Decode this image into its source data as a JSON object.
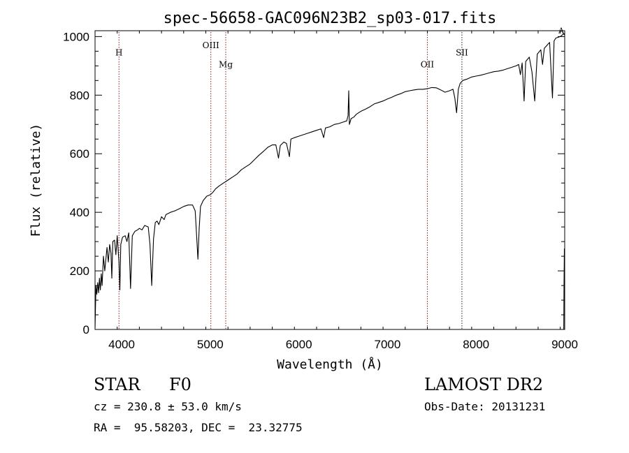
{
  "chart_data": {
    "type": "line",
    "title": "spec-56658-GAC096N23B2_sp03-017.fits",
    "xlabel": "Wavelength (Å)",
    "ylabel": "Flux (relative)",
    "xlim": [
      3700,
      9000
    ],
    "ylim": [
      0,
      1020
    ],
    "x_ticks": [
      4000,
      5000,
      6000,
      7000,
      8000,
      9000
    ],
    "y_ticks": [
      0,
      200,
      400,
      600,
      800,
      1000
    ],
    "grid": false,
    "series": [
      {
        "color": "#000000",
        "points": [
          [
            3700,
            5
          ],
          [
            3710,
            150
          ],
          [
            3720,
            120
          ],
          [
            3730,
            160
          ],
          [
            3740,
            125
          ],
          [
            3750,
            175
          ],
          [
            3760,
            135
          ],
          [
            3770,
            190
          ],
          [
            3780,
            150
          ],
          [
            3795,
            250
          ],
          [
            3810,
            200
          ],
          [
            3835,
            280
          ],
          [
            3850,
            230
          ],
          [
            3865,
            290
          ],
          [
            3880,
            260
          ],
          [
            3889,
            175
          ],
          [
            3900,
            300
          ],
          [
            3920,
            305
          ],
          [
            3935,
            255
          ],
          [
            3950,
            320
          ],
          [
            3970,
            230
          ],
          [
            3980,
            135
          ],
          [
            3990,
            290
          ],
          [
            4010,
            315
          ],
          [
            4040,
            320
          ],
          [
            4060,
            300
          ],
          [
            4080,
            330
          ],
          [
            4101,
            140
          ],
          [
            4120,
            320
          ],
          [
            4150,
            335
          ],
          [
            4180,
            340
          ],
          [
            4200,
            345
          ],
          [
            4230,
            340
          ],
          [
            4260,
            355
          ],
          [
            4300,
            350
          ],
          [
            4320,
            290
          ],
          [
            4340,
            150
          ],
          [
            4360,
            310
          ],
          [
            4380,
            365
          ],
          [
            4400,
            370
          ],
          [
            4420,
            358
          ],
          [
            4450,
            385
          ],
          [
            4480,
            375
          ],
          [
            4500,
            392
          ],
          [
            4550,
            400
          ],
          [
            4600,
            405
          ],
          [
            4650,
            412
          ],
          [
            4700,
            420
          ],
          [
            4750,
            425
          ],
          [
            4800,
            425
          ],
          [
            4830,
            405
          ],
          [
            4850,
            300
          ],
          [
            4861,
            240
          ],
          [
            4875,
            345
          ],
          [
            4890,
            420
          ],
          [
            4920,
            440
          ],
          [
            4960,
            455
          ],
          [
            5000,
            460
          ],
          [
            5030,
            468
          ],
          [
            5060,
            480
          ],
          [
            5100,
            490
          ],
          [
            5150,
            500
          ],
          [
            5200,
            510
          ],
          [
            5250,
            520
          ],
          [
            5300,
            530
          ],
          [
            5350,
            545
          ],
          [
            5400,
            555
          ],
          [
            5450,
            565
          ],
          [
            5500,
            580
          ],
          [
            5550,
            595
          ],
          [
            5600,
            608
          ],
          [
            5650,
            622
          ],
          [
            5700,
            630
          ],
          [
            5740,
            630
          ],
          [
            5770,
            585
          ],
          [
            5790,
            628
          ],
          [
            5830,
            640
          ],
          [
            5860,
            635
          ],
          [
            5893,
            590
          ],
          [
            5910,
            650
          ],
          [
            5950,
            655
          ],
          [
            6000,
            660
          ],
          [
            6050,
            665
          ],
          [
            6100,
            670
          ],
          [
            6150,
            675
          ],
          [
            6200,
            680
          ],
          [
            6250,
            685
          ],
          [
            6280,
            655
          ],
          [
            6300,
            688
          ],
          [
            6350,
            692
          ],
          [
            6400,
            700
          ],
          [
            6450,
            703
          ],
          [
            6500,
            708
          ],
          [
            6540,
            712
          ],
          [
            6555,
            730
          ],
          [
            6563,
            815
          ],
          [
            6570,
            700
          ],
          [
            6590,
            720
          ],
          [
            6620,
            725
          ],
          [
            6650,
            735
          ],
          [
            6700,
            745
          ],
          [
            6750,
            752
          ],
          [
            6800,
            760
          ],
          [
            6850,
            770
          ],
          [
            6900,
            775
          ],
          [
            6950,
            780
          ],
          [
            7000,
            787
          ],
          [
            7050,
            793
          ],
          [
            7100,
            800
          ],
          [
            7150,
            805
          ],
          [
            7200,
            812
          ],
          [
            7250,
            815
          ],
          [
            7300,
            818
          ],
          [
            7350,
            820
          ],
          [
            7400,
            820
          ],
          [
            7450,
            822
          ],
          [
            7500,
            826
          ],
          [
            7550,
            825
          ],
          [
            7600,
            818
          ],
          [
            7650,
            810
          ],
          [
            7700,
            815
          ],
          [
            7740,
            820
          ],
          [
            7760,
            790
          ],
          [
            7780,
            740
          ],
          [
            7800,
            820
          ],
          [
            7820,
            840
          ],
          [
            7850,
            850
          ],
          [
            7900,
            855
          ],
          [
            7950,
            862
          ],
          [
            8000,
            865
          ],
          [
            8050,
            868
          ],
          [
            8100,
            872
          ],
          [
            8150,
            876
          ],
          [
            8200,
            880
          ],
          [
            8250,
            882
          ],
          [
            8300,
            885
          ],
          [
            8350,
            890
          ],
          [
            8400,
            895
          ],
          [
            8450,
            900
          ],
          [
            8480,
            905
          ],
          [
            8500,
            870
          ],
          [
            8520,
            910
          ],
          [
            8542,
            780
          ],
          [
            8560,
            915
          ],
          [
            8600,
            930
          ],
          [
            8630,
            880
          ],
          [
            8662,
            780
          ],
          [
            8690,
            940
          ],
          [
            8730,
            955
          ],
          [
            8750,
            905
          ],
          [
            8770,
            960
          ],
          [
            8800,
            970
          ],
          [
            8830,
            980
          ],
          [
            8862,
            790
          ],
          [
            8880,
            985
          ],
          [
            8900,
            995
          ],
          [
            8950,
            1000
          ],
          [
            8990,
            1010
          ],
          [
            9000,
            1005
          ]
        ]
      },
      {
        "color": "#000000",
        "points": [
          [
            8990,
            0
          ],
          [
            8992,
            145
          ],
          [
            8996,
            275
          ],
          [
            9000,
            160
          ]
        ]
      }
    ],
    "line_markers": [
      {
        "label": "H",
        "x": 3970,
        "label_y": 935,
        "style": "dotted",
        "color": "#8b1a1a"
      },
      {
        "label": "OIII",
        "x": 5007,
        "label_y": 960,
        "style": "dotted",
        "color": "#8b1a1a"
      },
      {
        "label": "Mg",
        "x": 5175,
        "label_y": 895,
        "style": "dotted",
        "color": "#8b1a1a"
      },
      {
        "label": "OII",
        "x": 7450,
        "label_y": 895,
        "style": "dotted",
        "color": "#8b1a1a"
      },
      {
        "label": "SII",
        "x": 7840,
        "label_y": 935,
        "style": "dotted",
        "color": "#1a1a1a"
      }
    ],
    "annotations": [
      {
        "label": "A",
        "x": 8960,
        "y": 1012
      }
    ]
  },
  "info": {
    "object_type": "STAR",
    "subclass": "F0",
    "survey": "LAMOST DR2",
    "cz": "cz = 230.8 ± 53.0 km/s",
    "obs_date": "Obs-Date: 20131231",
    "radec": "RA =  95.58203, DEC =  23.32775"
  }
}
